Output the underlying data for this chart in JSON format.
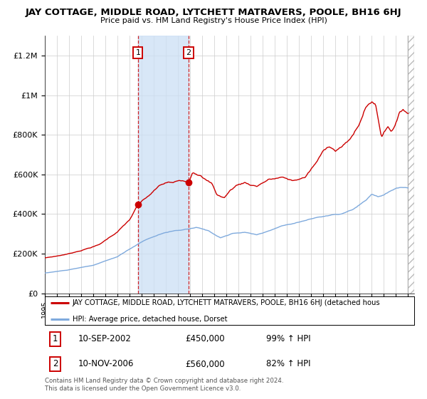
{
  "title": "JAY COTTAGE, MIDDLE ROAD, LYTCHETT MATRAVERS, POOLE, BH16 6HJ",
  "subtitle": "Price paid vs. HM Land Registry's House Price Index (HPI)",
  "background_color": "#ffffff",
  "plot_bg_color": "#ffffff",
  "grid_color": "#cccccc",
  "hpi_color": "#7faadd",
  "red_line_color": "#cc0000",
  "transaction1_date": "10-SEP-2002",
  "transaction1_price": "£450,000",
  "transaction1_pct": "99% ↑ HPI",
  "transaction2_date": "10-NOV-2006",
  "transaction2_price": "£560,000",
  "transaction2_pct": "82% ↑ HPI",
  "legend_line1": "JAY COTTAGE, MIDDLE ROAD, LYTCHETT MATRAVERS, POOLE, BH16 6HJ (detached hous",
  "legend_line2": "HPI: Average price, detached house, Dorset",
  "footnote1": "Contains HM Land Registry data © Crown copyright and database right 2024.",
  "footnote2": "This data is licensed under the Open Government Licence v3.0.",
  "ylim": [
    0,
    1300000
  ],
  "xlim_start": 1995.0,
  "xlim_end": 2025.5,
  "shade_region_start": 2002.69,
  "shade_region_end": 2006.87,
  "t1_x": 2002.69,
  "t1_y": 450000,
  "t2_x": 2006.87,
  "t2_y": 560000
}
